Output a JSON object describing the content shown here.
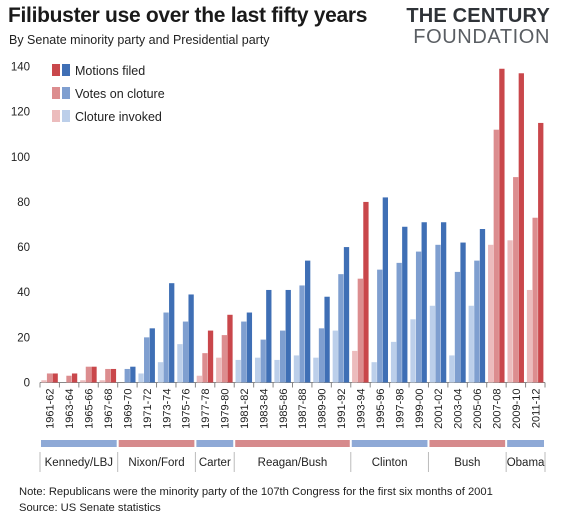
{
  "title": "Filibuster use over the last fifty years",
  "subtitle": "By Senate minority party and Presidential party",
  "logo": {
    "line1": "THE CENTURY",
    "line2": "FOUNDATION"
  },
  "note": "Note: Republicans were the minority party of the 107th Congress for the first six months of 2001",
  "source": "Source: US Senate statistics",
  "colors": {
    "dem_motions": "#3f6fb5",
    "dem_votes": "#7f9fd0",
    "dem_invoked": "#bccfea",
    "rep_motions": "#c9474b",
    "rep_votes": "#dc8d8f",
    "rep_invoked": "#ecbcbd",
    "dem_band": "#8ea9d6",
    "rep_band": "#d68a8c"
  },
  "chart_data": {
    "type": "bar",
    "ylim": [
      0,
      140
    ],
    "yticks": [
      0,
      20,
      40,
      60,
      80,
      100,
      120,
      140
    ],
    "xlabel": "",
    "ylabel": "",
    "legend_position": "top-left",
    "categories": [
      "1961-62",
      "1963-64",
      "1965-66",
      "1967-68",
      "1969-70",
      "1971-72",
      "1973-74",
      "1975-76",
      "1977-78",
      "1979-80",
      "1981-82",
      "1983-84",
      "1985-86",
      "1987-88",
      "1989-90",
      "1991-92",
      "1993-94",
      "1995-96",
      "1997-98",
      "1999-00",
      "2001-02",
      "2003-04",
      "2005-06",
      "2007-08",
      "2009-10",
      "2011-12"
    ],
    "minority_party": [
      "R",
      "R",
      "R",
      "R",
      "D",
      "D",
      "D",
      "D",
      "R",
      "R",
      "D",
      "D",
      "D",
      "D",
      "D",
      "D",
      "R",
      "D",
      "D",
      "D",
      "D",
      "D",
      "D",
      "R",
      "R",
      "R"
    ],
    "series": [
      {
        "name": "Motions filed",
        "values": [
          4,
          4,
          7,
          6,
          7,
          24,
          44,
          39,
          23,
          30,
          31,
          41,
          41,
          54,
          38,
          60,
          80,
          82,
          69,
          71,
          71,
          62,
          68,
          139,
          137,
          115
        ]
      },
      {
        "name": "Votes on cloture",
        "values": [
          4,
          3,
          7,
          6,
          6,
          20,
          31,
          27,
          13,
          21,
          27,
          19,
          23,
          43,
          24,
          48,
          46,
          50,
          53,
          58,
          61,
          49,
          54,
          112,
          91,
          73
        ]
      },
      {
        "name": "Cloture invoked",
        "values": [
          1,
          0,
          1,
          1,
          0,
          4,
          9,
          17,
          3,
          11,
          10,
          11,
          10,
          12,
          11,
          23,
          14,
          9,
          18,
          28,
          34,
          12,
          34,
          61,
          63,
          41
        ]
      }
    ],
    "presidents": [
      {
        "name": "Kennedy/LBJ",
        "party": "D",
        "start": 0,
        "end": 3
      },
      {
        "name": "Nixon/Ford",
        "party": "R",
        "start": 4,
        "end": 7
      },
      {
        "name": "Carter",
        "party": "D",
        "start": 8,
        "end": 9
      },
      {
        "name": "Reagan/Bush",
        "party": "R",
        "start": 10,
        "end": 15
      },
      {
        "name": "Clinton",
        "party": "D",
        "start": 16,
        "end": 19
      },
      {
        "name": "Bush",
        "party": "R",
        "start": 20,
        "end": 23
      },
      {
        "name": "Obama",
        "party": "D",
        "start": 24,
        "end": 25
      }
    ]
  }
}
